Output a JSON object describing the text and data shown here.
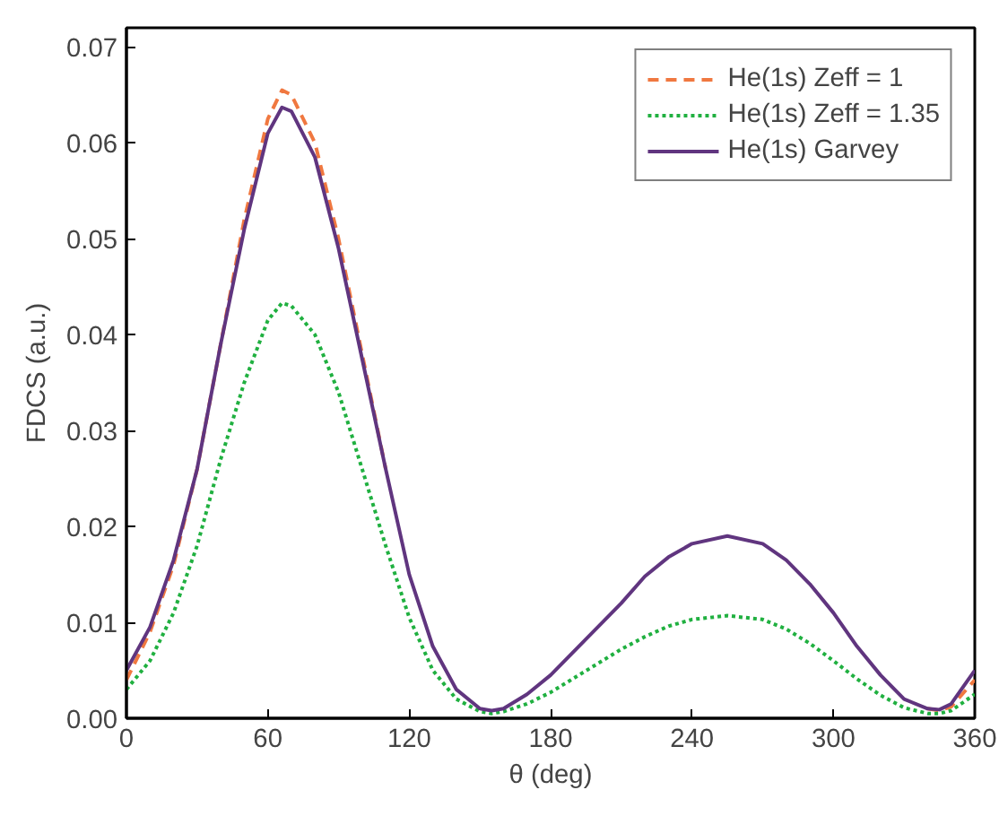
{
  "chart_data": {
    "type": "line",
    "xlabel": "θ (deg)",
    "ylabel": "FDCS (a.u.)",
    "xlim": [
      0,
      360
    ],
    "ylim": [
      0,
      0.072
    ],
    "xticks": [
      0,
      60,
      120,
      180,
      240,
      300,
      360
    ],
    "yticks": [
      {
        "value": 0,
        "label": "0.00"
      },
      {
        "value": 0.01,
        "label": "0.01"
      },
      {
        "value": 0.02,
        "label": "0.02"
      },
      {
        "value": 0.03,
        "label": "0.03"
      },
      {
        "value": 0.04,
        "label": "0.04"
      },
      {
        "value": 0.05,
        "label": "0.05"
      },
      {
        "value": 0.06,
        "label": "0.06"
      },
      {
        "value": 0.07,
        "label": "0.07"
      }
    ],
    "grid": false,
    "legend": "top right",
    "x": [
      0,
      10,
      20,
      30,
      40,
      50,
      60,
      66,
      70,
      80,
      90,
      100,
      110,
      120,
      130,
      140,
      150,
      155,
      160,
      170,
      180,
      190,
      200,
      210,
      220,
      230,
      240,
      255,
      270,
      280,
      290,
      300,
      310,
      320,
      330,
      340,
      345,
      350,
      360
    ],
    "series": [
      {
        "name": "He(1s) Zeff = 1",
        "color": "#f07840",
        "line_style": "dashed",
        "values": [
          0.004,
          0.009,
          0.016,
          0.026,
          0.039,
          0.052,
          0.0625,
          0.0655,
          0.065,
          0.06,
          0.05,
          0.038,
          0.026,
          null,
          null,
          null,
          null,
          null,
          null,
          null,
          null,
          null,
          null,
          null,
          null,
          null,
          null,
          null,
          null,
          null,
          null,
          null,
          null,
          null,
          null,
          0.001,
          0.0008,
          0.0012,
          0.004
        ]
      },
      {
        "name": "He(1s) Zeff = 1.35",
        "color": "#20b040",
        "line_style": "dotted",
        "values": [
          0.003,
          0.006,
          0.011,
          0.018,
          0.027,
          0.035,
          0.0415,
          0.0433,
          0.043,
          0.04,
          0.034,
          0.026,
          0.018,
          0.0105,
          0.005,
          0.002,
          0.0007,
          0.0005,
          0.0007,
          0.0015,
          0.0027,
          0.0042,
          0.0057,
          0.0072,
          0.0085,
          0.0096,
          0.0103,
          0.0107,
          0.0103,
          0.0093,
          0.0078,
          0.006,
          0.0041,
          0.0024,
          0.0011,
          0.0005,
          0.0005,
          0.0008,
          0.0025
        ]
      },
      {
        "name": "He(1s) Garvey",
        "color": "#60357f",
        "line_style": "solid",
        "values": [
          0.005,
          0.0095,
          0.0165,
          0.026,
          0.039,
          0.051,
          0.061,
          0.0637,
          0.0633,
          0.0585,
          0.049,
          0.0375,
          0.026,
          0.015,
          0.0075,
          0.003,
          0.001,
          0.0008,
          0.001,
          0.0025,
          0.0045,
          0.007,
          0.0095,
          0.012,
          0.0148,
          0.0168,
          0.0182,
          0.019,
          0.0182,
          0.0165,
          0.014,
          0.011,
          0.0075,
          0.0045,
          0.002,
          0.001,
          0.0009,
          0.0015,
          0.005
        ]
      }
    ]
  }
}
